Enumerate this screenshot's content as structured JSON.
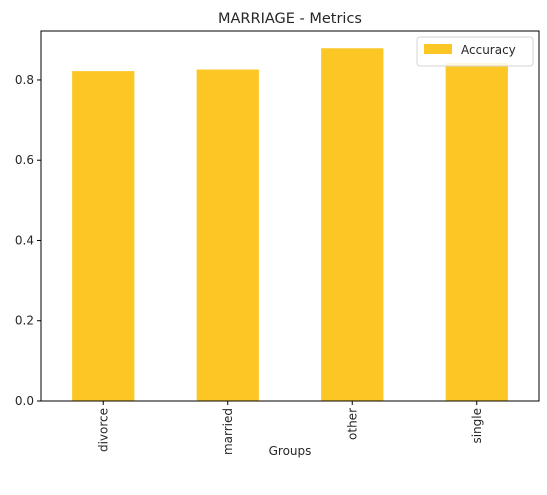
{
  "chart_data": {
    "type": "bar",
    "title": "MARRIAGE - Metrics",
    "xlabel": "Groups",
    "ylabel": "",
    "categories": [
      "divorce",
      "married",
      "other",
      "single"
    ],
    "series": [
      {
        "name": "Accuracy",
        "values": [
          0.822,
          0.826,
          0.879,
          0.842
        ],
        "color": "#fcc624"
      }
    ],
    "ylim": [
      0,
      0.922
    ],
    "yticks": [
      0.0,
      0.2,
      0.4,
      0.6,
      0.8
    ],
    "ytick_labels": [
      "0.0",
      "0.2",
      "0.4",
      "0.6",
      "0.8"
    ],
    "grid": false,
    "legend_position": "top-right"
  }
}
